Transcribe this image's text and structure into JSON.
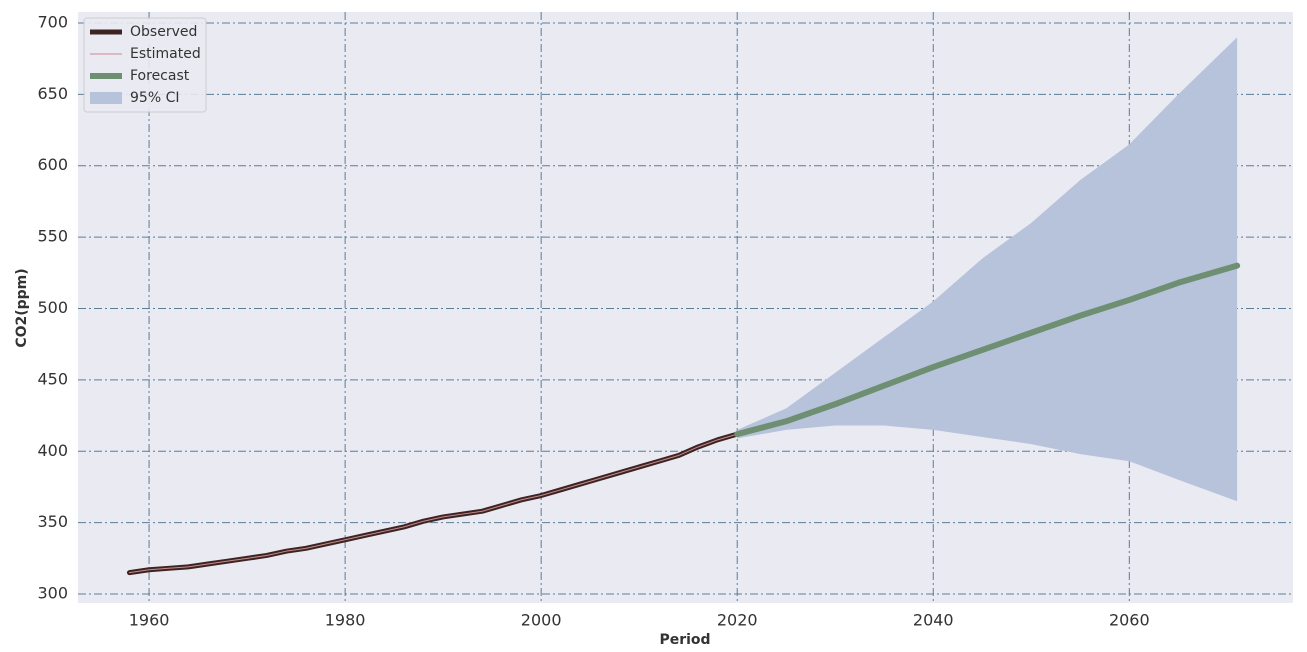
{
  "chart_data": {
    "type": "line",
    "xlabel": "Period",
    "ylabel": "CO2(ppm)",
    "xlim": [
      1952.75,
      2076.7
    ],
    "ylim": [
      293.7,
      707.7
    ],
    "xticks": [
      1960,
      1980,
      2000,
      2020,
      2040,
      2060
    ],
    "yticks": [
      300,
      350,
      400,
      450,
      500,
      550,
      600,
      650,
      700
    ],
    "grid": true,
    "legend": "upper left",
    "series": [
      {
        "name": "Observed",
        "color": "#3d2424",
        "width": 5,
        "x": [
          1958,
          1960,
          1962,
          1964,
          1966,
          1968,
          1970,
          1972,
          1974,
          1976,
          1978,
          1980,
          1982,
          1984,
          1986,
          1988,
          1990,
          1992,
          1994,
          1996,
          1998,
          2000,
          2002,
          2004,
          2006,
          2008,
          2010,
          2012,
          2014,
          2016,
          2018,
          2020
        ],
        "values": [
          315,
          317,
          318,
          319,
          321,
          323,
          325,
          327,
          330,
          332,
          335,
          338,
          341,
          344,
          347,
          351,
          354,
          356,
          358,
          362,
          366,
          369,
          373,
          377,
          381,
          385,
          389,
          393,
          397,
          403,
          408,
          412
        ]
      },
      {
        "name": "Estimated",
        "color": "#c98a8a",
        "width": 1,
        "x": [
          1958,
          1960,
          1962,
          1964,
          1966,
          1968,
          1970,
          1972,
          1974,
          1976,
          1978,
          1980,
          1982,
          1984,
          1986,
          1988,
          1990,
          1992,
          1994,
          1996,
          1998,
          2000,
          2002,
          2004,
          2006,
          2008,
          2010,
          2012,
          2014,
          2016,
          2018,
          2020
        ],
        "values": [
          315,
          317,
          318,
          319,
          321,
          323,
          325,
          327,
          330,
          332,
          335,
          338,
          341,
          344,
          347,
          351,
          354,
          356,
          358,
          362,
          366,
          369,
          373,
          377,
          381,
          385,
          389,
          393,
          397,
          403,
          408,
          412
        ]
      },
      {
        "name": "Forecast",
        "color": "#6f8f72",
        "width": 6,
        "x": [
          2020,
          2025,
          2030,
          2035,
          2040,
          2045,
          2050,
          2055,
          2060,
          2065,
          2071
        ],
        "values": [
          412,
          421,
          433,
          446,
          459,
          471,
          483,
          495,
          506,
          518,
          530
        ]
      }
    ],
    "band": {
      "name": "95% CI",
      "color": "#b7c3db",
      "x": [
        2020,
        2025,
        2030,
        2035,
        2040,
        2045,
        2050,
        2055,
        2060,
        2065,
        2071
      ],
      "upper": [
        415,
        430,
        455,
        480,
        505,
        535,
        560,
        590,
        615,
        650,
        690
      ],
      "lower": [
        409,
        415,
        418,
        418,
        415,
        410,
        405,
        398,
        393,
        380,
        365
      ]
    }
  }
}
